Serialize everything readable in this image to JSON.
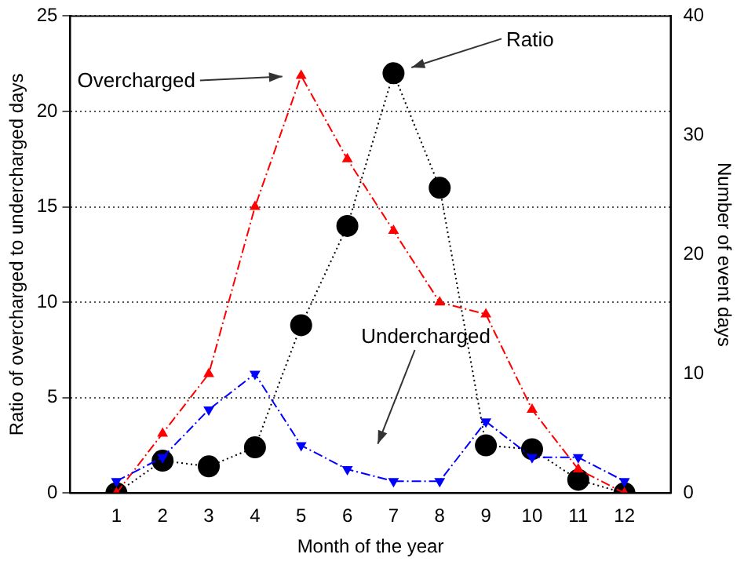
{
  "chart_data": {
    "type": "line",
    "xlabel": "Month of the year",
    "ylabel": "Ratio of overcharged to undercharged days",
    "y2label": "Number of event days",
    "x": [
      1,
      2,
      3,
      4,
      5,
      6,
      7,
      8,
      9,
      10,
      11,
      12
    ],
    "series": [
      {
        "name": "Ratio",
        "color": "#000000",
        "values": [
          0,
          1.7,
          1.4,
          2.4,
          8.8,
          14,
          22,
          16,
          2.5,
          2.3,
          0.7,
          0
        ],
        "marker": "circle",
        "line_style": "dotted"
      },
      {
        "name": "Overcharged",
        "color": "#ff0000",
        "values": [
          0,
          5,
          10,
          24,
          35,
          28,
          22,
          16,
          15,
          7,
          2,
          0
        ],
        "axis": "y2",
        "marker": "triangle",
        "line_style": "dashed"
      },
      {
        "name": "Undercharged",
        "color": "#0000ff",
        "values": [
          1,
          3,
          7,
          10,
          4,
          2,
          1,
          1,
          6,
          3,
          3,
          1
        ],
        "axis": "y2",
        "marker": "triangle-down",
        "line_style": "dashed"
      }
    ],
    "xlim": [
      0,
      13
    ],
    "xticks": [
      1,
      2,
      3,
      4,
      5,
      6,
      7,
      8,
      9,
      10,
      11,
      12
    ],
    "ylim": [
      0,
      25
    ],
    "yticks": [
      0,
      5,
      10,
      15,
      20,
      25
    ],
    "y2lim": [
      0,
      40
    ],
    "y2ticks": [
      0,
      10,
      20,
      30,
      40
    ],
    "grid": "y",
    "legend": false
  }
}
